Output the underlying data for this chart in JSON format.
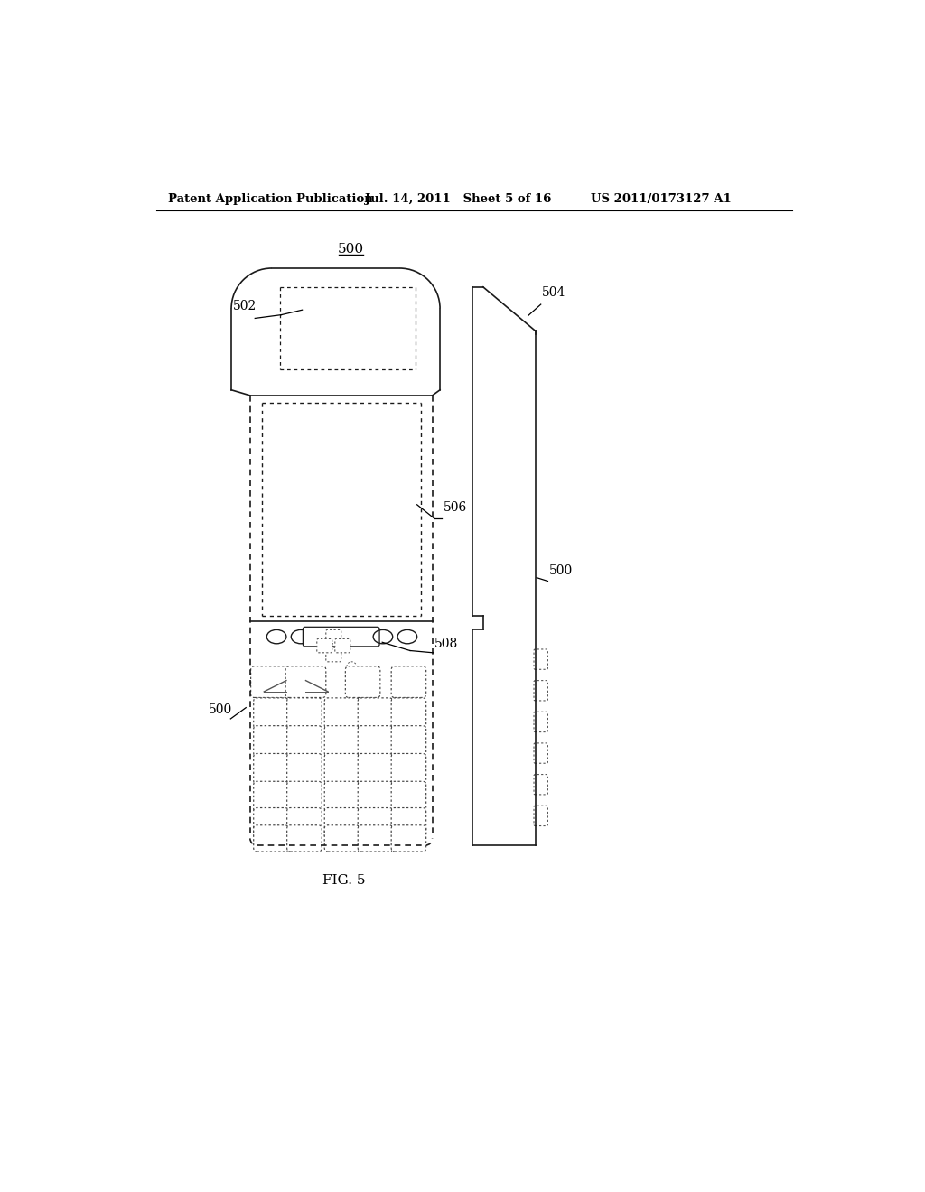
{
  "bg_color": "#ffffff",
  "header_left": "Patent Application Publication",
  "header_mid": "Jul. 14, 2011   Sheet 5 of 16",
  "header_right": "US 2011/0173127 A1",
  "fig_label": "FIG. 5",
  "label_500_top": "500",
  "label_502": "502",
  "label_504": "504",
  "label_506": "506",
  "label_508": "508",
  "label_500_left": "500",
  "label_500_right": "500"
}
